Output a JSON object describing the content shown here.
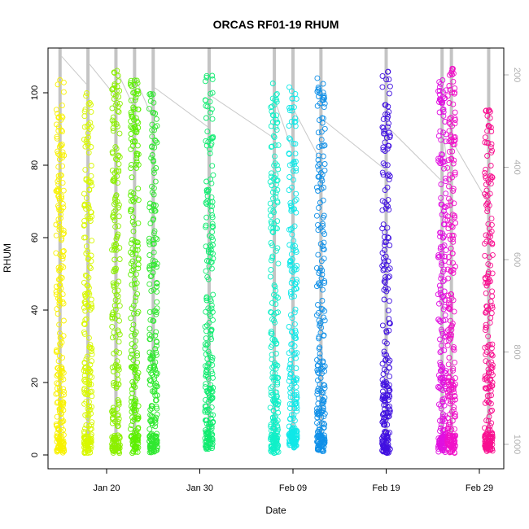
{
  "chart_data": {
    "type": "scatter",
    "title": "ORCAS RF01-19 RHUM",
    "xlabel": "Date",
    "ylabel": "RHUM",
    "x_ticks": [
      "Jan 20",
      "Jan 30",
      "Feb 09",
      "Feb 19",
      "Feb 29"
    ],
    "y_ticks": [
      "0",
      "20",
      "40",
      "60",
      "80",
      "100"
    ],
    "y2_ticks": [
      "200",
      "400",
      "600",
      "800",
      "1000"
    ],
    "y_range": [
      0,
      111
    ],
    "y2_range": [
      128,
      1038
    ],
    "y2_reversed": true,
    "grid": false,
    "legend": "none",
    "point_style": "open circle",
    "flights": [
      {
        "date": "2016-01-15",
        "color": "#f8f200",
        "rhum_min": 0.5,
        "rhum_max": 104,
        "pressure_min": 140,
        "pressure_max": 1010
      },
      {
        "date": "2016-01-18",
        "color": "#d8f800",
        "rhum_min": 0.5,
        "rhum_max": 101,
        "pressure_min": 140,
        "pressure_max": 1010
      },
      {
        "date": "2016-01-21",
        "color": "#8cf000",
        "rhum_min": 0.5,
        "rhum_max": 107,
        "pressure_min": 140,
        "pressure_max": 1010
      },
      {
        "date": "2016-01-23",
        "color": "#5cf000",
        "rhum_min": 0.5,
        "rhum_max": 105,
        "pressure_min": 140,
        "pressure_max": 1010
      },
      {
        "date": "2016-01-25",
        "color": "#30e830",
        "rhum_min": 0.5,
        "rhum_max": 100,
        "pressure_min": 140,
        "pressure_max": 830
      },
      {
        "date": "2016-01-31",
        "color": "#10ec70",
        "rhum_min": 1.5,
        "rhum_max": 105,
        "pressure_min": 140,
        "pressure_max": 1010
      },
      {
        "date": "2016-02-07",
        "color": "#10f0c8",
        "rhum_min": 0.5,
        "rhum_max": 104,
        "pressure_min": 140,
        "pressure_max": 1010
      },
      {
        "date": "2016-02-09",
        "color": "#10e8e8",
        "rhum_min": 2.0,
        "rhum_max": 102,
        "pressure_min": 140,
        "pressure_max": 1010
      },
      {
        "date": "2016-02-12",
        "color": "#1090e8",
        "rhum_min": 0.5,
        "rhum_max": 105,
        "pressure_min": 140,
        "pressure_max": 1010
      },
      {
        "date": "2016-02-19",
        "color": "#4010e0",
        "rhum_min": 0.5,
        "rhum_max": 107,
        "pressure_min": 140,
        "pressure_max": 1010
      },
      {
        "date": "2016-02-25",
        "color": "#e010e0",
        "rhum_min": 0.5,
        "rhum_max": 104,
        "pressure_min": 140,
        "pressure_max": 1010
      },
      {
        "date": "2016-02-26",
        "color": "#f010c8",
        "rhum_min": 0.5,
        "rhum_max": 107,
        "pressure_min": 140,
        "pressure_max": 1010
      },
      {
        "date": "2016-03-01",
        "color": "#f81090",
        "rhum_min": 1.0,
        "rhum_max": 96,
        "pressure_min": 140,
        "pressure_max": 1010
      }
    ]
  }
}
